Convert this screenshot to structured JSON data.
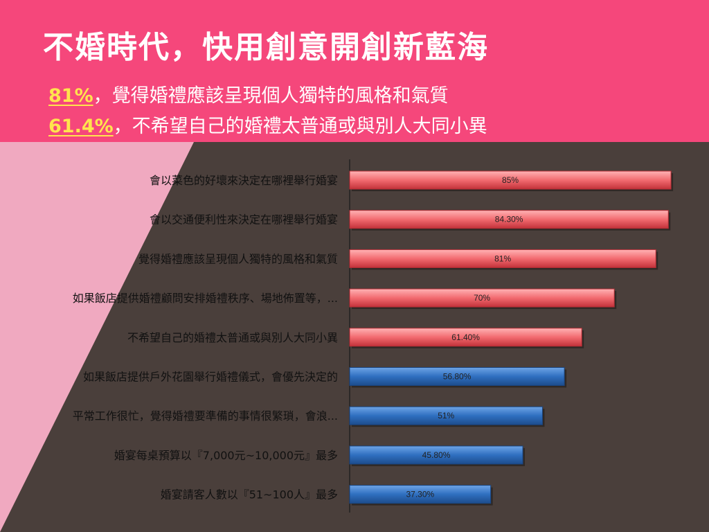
{
  "slide": {
    "title": "不婚時代，快用創意開創新藍海",
    "highlights": [
      {
        "percent": "81%",
        "text": "，覺得婚禮應該呈現個人獨特的風格和氣質"
      },
      {
        "percent": "61.4%",
        "text": "，不希望自己的婚禮太普通或與別人大同小異"
      }
    ]
  },
  "colors": {
    "header": "#f5477b",
    "highlight": "#ffe44d",
    "left_panel": "#f0a9c0",
    "right_panel": "#4a3f3b",
    "bar_red": "#f26b70",
    "bar_blue": "#2f6fc0"
  },
  "chart_data": {
    "type": "bar",
    "orientation": "horizontal",
    "categories": [
      "會以菜色的好壞來決定在哪裡舉行婚宴",
      "會以交通便利性來決定在哪裡舉行婚宴",
      "覺得婚禮應該呈現個人獨特的風格和氣質",
      "如果飯店提供婚禮顧問安排婚禮秩序、場地佈置等，...",
      "不希望自己的婚禮太普通或與別人大同小異",
      "如果飯店提供戶外花園舉行婚禮儀式，會優先決定的",
      "平常工作很忙，覺得婚禮要準備的事情很繁瑣，會浪...",
      "婚宴每桌預算以『7,000元~10,000元』最多",
      "婚宴請客人數以『51~100人』最多"
    ],
    "values": [
      85,
      84.3,
      81,
      70,
      61.4,
      56.8,
      51,
      45.8,
      37.3
    ],
    "data_labels": [
      "85%",
      "84.30%",
      "81%",
      "70%",
      "61.40%",
      "56.80%",
      "51%",
      "45.80%",
      "37.30%"
    ],
    "bar_colors": [
      "red",
      "red",
      "red",
      "red",
      "red",
      "blue",
      "blue",
      "blue",
      "blue"
    ],
    "xlim": [
      0,
      100
    ],
    "grid": false,
    "legend": "none"
  }
}
